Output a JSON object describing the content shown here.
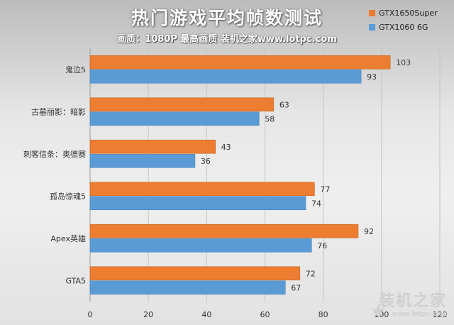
{
  "title": "热门游戏平均帧数测试",
  "subtitle": "画质：1080P 最高画质 装机之家www.lotpc.com",
  "legend": [
    {
      "name": "GTX1650Super",
      "color": "#ed7d31"
    },
    {
      "name": "GTX1060 6G",
      "color": "#5b9bd5"
    }
  ],
  "watermark": {
    "main": "装机之家",
    "url": "www.lotpc.com"
  },
  "chart_data": {
    "type": "bar",
    "orientation": "horizontal",
    "categories": [
      "鬼泣5",
      "古墓丽影：暗影",
      "刺客信条：奥德赛",
      "孤岛惊魂5",
      "Apex英雄",
      "GTA5"
    ],
    "series": [
      {
        "name": "GTX1650Super",
        "color": "#ed7d31",
        "values": [
          103,
          63,
          43,
          77,
          92,
          72
        ]
      },
      {
        "name": "GTX1060 6G",
        "color": "#5b9bd5",
        "values": [
          93,
          58,
          36,
          74,
          76,
          67
        ]
      }
    ],
    "xlim": [
      0,
      120
    ],
    "xticks": [
      "0",
      "20",
      "40",
      "60",
      "80",
      "100",
      "120"
    ],
    "grid": true,
    "legend_position": "top-right"
  }
}
